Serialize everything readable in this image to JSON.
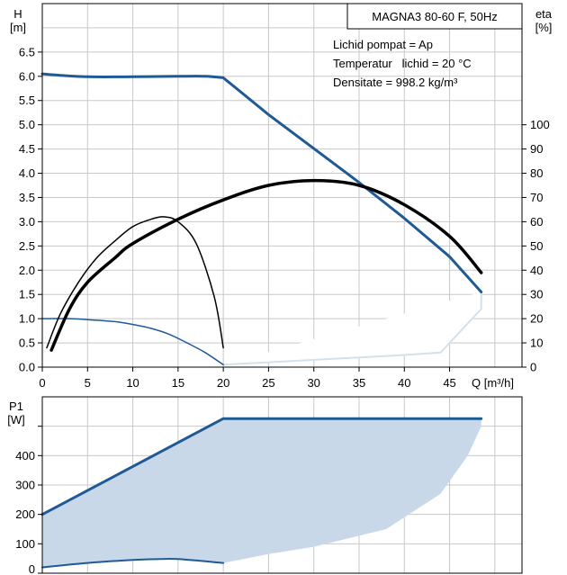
{
  "colors": {
    "grid": "#c8c8c8",
    "axis": "#000000",
    "curve_blue": "#1f5a96",
    "curve_black": "#000000",
    "range_fill": "#c9d8e8",
    "range_edge": "#d4e0ec"
  },
  "chart_data": [
    {
      "type": "line",
      "title": "MAGNA3 80-60 F, 50Hz",
      "ylabel_h_top": "H",
      "ylabel_h_unit": "[m]",
      "ylabel_eta_top": "eta",
      "ylabel_eta_unit": "[%]",
      "xlabel": "Q [m³/h]",
      "info": [
        "Lichid pompat = Ap",
        "Temperatur   lichid = 20 °C",
        "Densitate = 998.2 kg/m³"
      ],
      "xlim": [
        0,
        53
      ],
      "x_ticks": [
        0,
        5,
        10,
        15,
        20,
        25,
        30,
        35,
        40,
        45
      ],
      "ylim": [
        0,
        7.5
      ],
      "y_ticks": [
        0.0,
        0.5,
        1.0,
        1.5,
        2.0,
        2.5,
        3.0,
        3.5,
        4.0,
        4.5,
        5.0,
        5.5,
        6.0,
        6.5
      ],
      "eta_axis": {
        "lim": [
          0,
          150
        ],
        "ticks": [
          0,
          10,
          20,
          30,
          40,
          50,
          60,
          70,
          80,
          90,
          100
        ]
      },
      "grid": true,
      "series": [
        {
          "axis": "H",
          "color": "#1f5a96",
          "width": 3,
          "x": [
            0,
            2,
            5,
            10,
            15,
            18,
            20,
            25,
            30,
            35,
            40,
            45,
            48.5
          ],
          "y": [
            6.05,
            6.02,
            5.99,
            5.99,
            6.0,
            6.0,
            5.97,
            5.21,
            4.51,
            3.81,
            3.07,
            2.28,
            1.55
          ]
        },
        {
          "axis": "H",
          "color": "#1f5a96",
          "width": 1.5,
          "x": [
            0,
            3,
            5,
            8,
            10,
            12,
            14,
            16,
            18,
            20
          ],
          "y": [
            1.0,
            1.0,
            0.98,
            0.94,
            0.88,
            0.8,
            0.68,
            0.5,
            0.3,
            0.05
          ]
        },
        {
          "axis": "eta",
          "color": "#000000",
          "width": 3.5,
          "x": [
            1,
            3,
            5,
            8,
            10,
            15,
            20,
            25,
            30,
            35,
            40,
            45,
            48.5
          ],
          "y": [
            7,
            24,
            35,
            45,
            51,
            61,
            69,
            75,
            77,
            75,
            67,
            54,
            39
          ]
        },
        {
          "axis": "eta",
          "color": "#000000",
          "width": 1.5,
          "x": [
            0.5,
            2,
            4,
            6,
            8,
            10,
            12,
            13.5,
            15,
            17,
            19,
            20
          ],
          "y": [
            8,
            22,
            35,
            45,
            52,
            58,
            61,
            62,
            60,
            51,
            29,
            8
          ]
        }
      ],
      "range_area": {
        "x": [
          20,
          25,
          30,
          35,
          40,
          44,
          48.5,
          48.5
        ],
        "y": [
          0.05,
          0.1,
          0.15,
          0.2,
          0.25,
          0.3,
          1.2,
          1.55
        ]
      }
    },
    {
      "type": "line",
      "ylabel_top": "P1",
      "ylabel_unit": "[W]",
      "xlim": [
        0,
        53
      ],
      "ylim": [
        0,
        600
      ],
      "y_ticks": [
        0,
        100,
        200,
        300,
        400
      ],
      "grid": true,
      "series": [
        {
          "color": "#1f5a96",
          "width": 3,
          "x": [
            0,
            20,
            48.5
          ],
          "y": [
            200,
            526,
            526
          ]
        },
        {
          "color": "#1f5a96",
          "width": 2,
          "x": [
            0,
            5,
            10,
            13,
            15,
            20
          ],
          "y": [
            20,
            35,
            45,
            48,
            48,
            35
          ]
        }
      ],
      "range_area": {
        "x": [
          0,
          20,
          48.5,
          48.5,
          47,
          44,
          38,
          30,
          25,
          20,
          15,
          10,
          5,
          0
        ],
        "y": [
          200,
          526,
          526,
          500,
          400,
          270,
          150,
          90,
          65,
          35,
          48,
          45,
          35,
          20
        ]
      }
    }
  ]
}
